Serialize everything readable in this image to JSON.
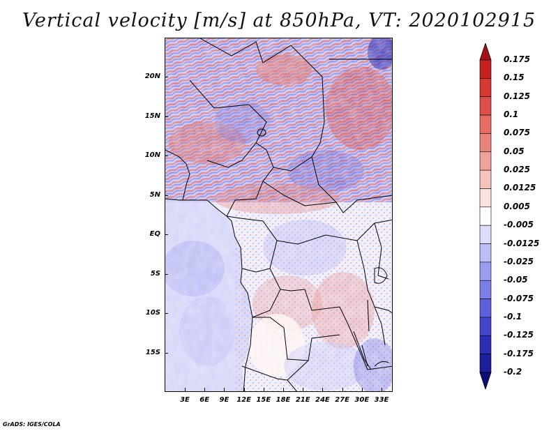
{
  "title": "Vertical velocity [m/s] at 850hPa, VT: 2020102915",
  "credit": "GrADS: IGES/COLA",
  "map": {
    "lat_labels": [
      "20N",
      "15N",
      "10N",
      "5N",
      "EQ",
      "5S",
      "10S",
      "15S"
    ],
    "lon_labels": [
      "3E",
      "6E",
      "9E",
      "12E",
      "15E",
      "18E",
      "21E",
      "24E",
      "27E",
      "30E",
      "33E"
    ]
  },
  "colorbar": {
    "levels": [
      "0.175",
      "0.15",
      "0.125",
      "0.1",
      "0.075",
      "0.05",
      "0.025",
      "0.0125",
      "0.005",
      "-0.005",
      "-0.0125",
      "-0.025",
      "-0.05",
      "-0.075",
      "-0.1",
      "-0.125",
      "-0.175",
      "-0.2"
    ],
    "colors": [
      "#a50f15",
      "#c4201f",
      "#d6372f",
      "#e0504a",
      "#e56b63",
      "#ea857e",
      "#f0a39c",
      "#f6c3bd",
      "#fbe1de",
      "#ffffff",
      "#dcdcfc",
      "#bdbdf7",
      "#9c9cf0",
      "#7d7de6",
      "#5f5fdc",
      "#4545cc",
      "#2d2db6",
      "#1e1e9c",
      "#0d0d78"
    ]
  }
}
